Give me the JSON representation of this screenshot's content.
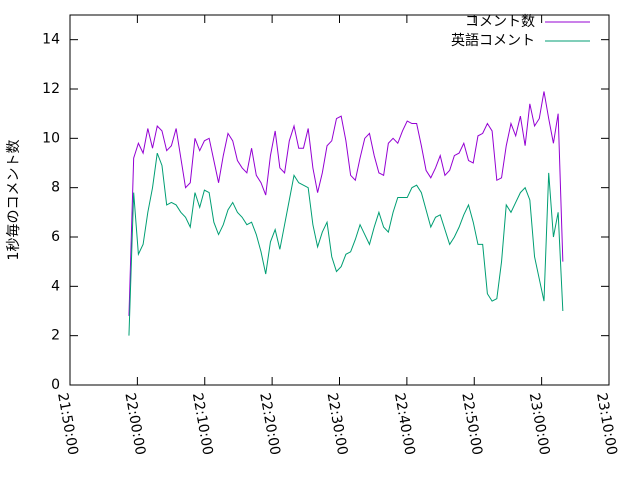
{
  "chart_data": {
    "type": "line",
    "ylabel": "1秒毎のコメント数",
    "xlim": [
      "21:50:00",
      "23:10:00"
    ],
    "xticks": [
      "21:50:00",
      "22:00:00",
      "22:10:00",
      "22:20:00",
      "22:30:00",
      "22:40:00",
      "22:50:00",
      "23:00:00",
      "23:10:00"
    ],
    "ylim": [
      0,
      15
    ],
    "yticks": [
      0,
      2,
      4,
      6,
      8,
      10,
      12,
      14
    ],
    "legend": "top-right",
    "x": [
      "21:58:45",
      "21:59:27",
      "22:00:09",
      "22:00:51",
      "22:01:33",
      "22:02:15",
      "22:02:57",
      "22:03:39",
      "22:04:21",
      "22:05:03",
      "22:05:45",
      "22:06:27",
      "22:07:09",
      "22:07:51",
      "22:08:33",
      "22:09:15",
      "22:09:57",
      "22:10:39",
      "22:11:21",
      "22:12:03",
      "22:12:45",
      "22:13:27",
      "22:14:09",
      "22:14:51",
      "22:15:33",
      "22:16:15",
      "22:16:57",
      "22:17:39",
      "22:18:21",
      "22:19:03",
      "22:19:45",
      "22:20:27",
      "22:21:09",
      "22:21:51",
      "22:22:33",
      "22:23:15",
      "22:23:57",
      "22:24:39",
      "22:25:21",
      "22:26:03",
      "22:26:45",
      "22:27:27",
      "22:28:09",
      "22:28:51",
      "22:29:33",
      "22:30:15",
      "22:30:57",
      "22:31:39",
      "22:32:21",
      "22:33:03",
      "22:33:45",
      "22:34:27",
      "22:35:09",
      "22:35:51",
      "22:36:33",
      "22:37:15",
      "22:37:57",
      "22:38:39",
      "22:39:21",
      "22:40:03",
      "22:40:45",
      "22:41:27",
      "22:42:09",
      "22:42:51",
      "22:43:33",
      "22:44:15",
      "22:44:57",
      "22:45:39",
      "22:46:21",
      "22:47:03",
      "22:47:45",
      "22:48:27",
      "22:49:09",
      "22:49:51",
      "22:50:33",
      "22:51:15",
      "22:51:57",
      "22:52:39",
      "22:53:21",
      "22:54:03",
      "22:54:45",
      "22:55:27",
      "22:56:09",
      "22:56:51",
      "22:57:33",
      "22:58:15",
      "22:58:57",
      "22:59:39",
      "23:00:21",
      "23:01:03",
      "23:01:45",
      "23:02:27",
      "23:03:09"
    ],
    "series": [
      {
        "name": "コメント数",
        "color": "#9400d3",
        "values": [
          2.8,
          9.2,
          9.8,
          9.4,
          10.4,
          9.6,
          10.5,
          10.3,
          9.5,
          9.7,
          10.4,
          9.2,
          8.0,
          8.2,
          10.0,
          9.5,
          9.9,
          10.0,
          9.1,
          8.2,
          9.3,
          10.2,
          9.9,
          9.1,
          8.8,
          8.6,
          9.6,
          8.5,
          8.2,
          7.7,
          9.3,
          10.3,
          8.8,
          8.6,
          9.9,
          10.5,
          9.6,
          9.6,
          10.4,
          8.8,
          7.8,
          8.6,
          9.7,
          9.9,
          10.8,
          10.9,
          9.9,
          8.5,
          8.3,
          9.2,
          10.0,
          10.2,
          9.3,
          8.6,
          8.5,
          9.8,
          10.0,
          9.8,
          10.3,
          10.7,
          10.6,
          10.6,
          9.7,
          8.7,
          8.4,
          8.8,
          9.3,
          8.5,
          8.7,
          9.3,
          9.4,
          9.8,
          9.1,
          9.0,
          10.1,
          10.2,
          10.6,
          10.3,
          8.3,
          8.4,
          9.7,
          10.6,
          10.1,
          10.9,
          9.7,
          11.4,
          10.5,
          10.8,
          11.9,
          10.8,
          9.8,
          11.0,
          5.0
        ]
      },
      {
        "name": "英語コメント",
        "color": "#009e73",
        "values": [
          2.0,
          7.8,
          5.3,
          5.7,
          7.0,
          8.0,
          9.4,
          8.9,
          7.3,
          7.4,
          7.3,
          7.0,
          6.8,
          6.4,
          7.8,
          7.2,
          7.9,
          7.8,
          6.6,
          6.1,
          6.5,
          7.1,
          7.4,
          7.0,
          6.8,
          6.5,
          6.6,
          6.1,
          5.4,
          4.5,
          5.8,
          6.3,
          5.5,
          6.5,
          7.5,
          8.5,
          8.2,
          8.1,
          8.0,
          6.5,
          5.6,
          6.2,
          6.6,
          5.2,
          4.6,
          4.8,
          5.3,
          5.4,
          5.9,
          6.5,
          6.1,
          5.7,
          6.4,
          7.0,
          6.4,
          6.2,
          7.0,
          7.6,
          7.6,
          7.6,
          8.0,
          8.1,
          7.8,
          7.1,
          6.4,
          6.8,
          6.9,
          6.3,
          5.7,
          6.0,
          6.4,
          6.9,
          7.3,
          6.6,
          5.7,
          5.7,
          3.7,
          3.4,
          3.5,
          5.0,
          7.3,
          7.0,
          7.4,
          7.8,
          8.0,
          7.5,
          5.2,
          4.3,
          3.4,
          8.6,
          6.0,
          7.0,
          3.0
        ]
      }
    ]
  }
}
